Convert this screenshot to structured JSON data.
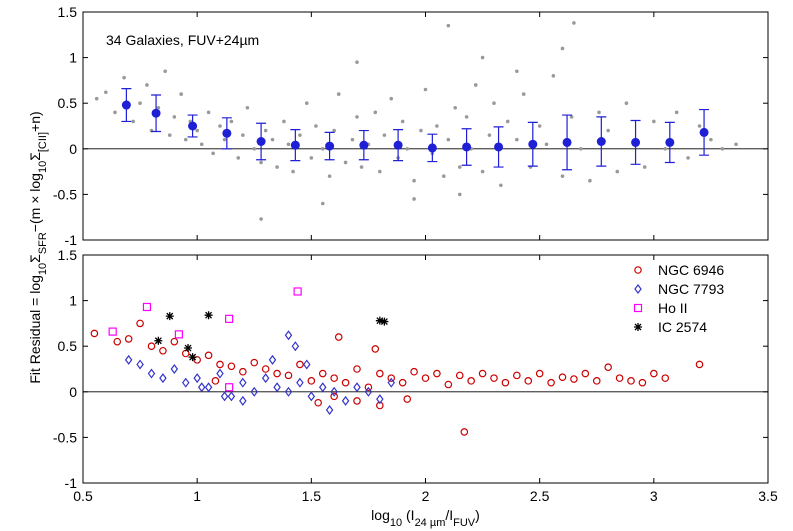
{
  "chart_data": [
    {
      "type": "scatter",
      "annotation": "34 Galaxies, FUV+24µm",
      "xlim": [
        0.5,
        3.5
      ],
      "xticks": [
        0.5,
        1,
        1.5,
        2,
        2.5,
        3,
        3.5
      ],
      "xticklabels": false,
      "ylim": [
        -1,
        1.5
      ],
      "yticks": [
        -1,
        -0.5,
        0,
        0.5,
        1,
        1.5
      ],
      "hline": 0,
      "series": [
        {
          "marker": "dot",
          "color": "#999999",
          "x": [
            0.56,
            0.6,
            0.64,
            0.68,
            0.72,
            0.75,
            0.78,
            0.8,
            0.83,
            0.86,
            0.88,
            0.9,
            0.93,
            0.95,
            0.97,
            1.0,
            1.02,
            1.05,
            1.07,
            1.1,
            1.12,
            1.15,
            1.18,
            1.2,
            1.22,
            1.25,
            1.28,
            1.3,
            1.33,
            1.35,
            1.38,
            1.4,
            1.42,
            1.45,
            1.48,
            1.5,
            1.52,
            1.55,
            1.58,
            1.6,
            1.62,
            1.65,
            1.68,
            1.7,
            1.72,
            1.75,
            1.78,
            1.8,
            1.82,
            1.85,
            1.88,
            1.9,
            1.92,
            1.95,
            1.98,
            2.0,
            2.03,
            2.05,
            2.08,
            2.1,
            2.13,
            2.15,
            2.18,
            2.2,
            2.22,
            2.25,
            2.28,
            2.3,
            2.33,
            2.36,
            2.4,
            2.43,
            2.46,
            2.5,
            2.53,
            2.56,
            2.6,
            2.64,
            2.68,
            2.72,
            2.76,
            2.8,
            2.84,
            2.88,
            2.92,
            2.96,
            3.0,
            3.05,
            3.1,
            3.15,
            3.2,
            3.25,
            3.3,
            3.36,
            1.28,
            1.55,
            1.7,
            2.1,
            2.25,
            2.6,
            2.65,
            2.15,
            1.95,
            2.4
          ],
          "y": [
            0.55,
            0.62,
            0.4,
            0.78,
            0.3,
            0.5,
            0.7,
            0.2,
            0.45,
            0.85,
            0.15,
            0.35,
            0.6,
            0.1,
            0.3,
            0.2,
            0.05,
            0.4,
            -0.05,
            0.25,
            0.1,
            0.3,
            -0.1,
            0.15,
            0.45,
            0.0,
            -0.15,
            0.2,
            0.1,
            -0.2,
            0.3,
            0.05,
            -0.25,
            0.15,
            0.5,
            -0.1,
            0.25,
            0.0,
            -0.3,
            0.2,
            0.6,
            -0.15,
            0.1,
            0.35,
            -0.2,
            0.05,
            0.4,
            -0.25,
            0.15,
            0.55,
            -0.1,
            0.3,
            0.0,
            -0.35,
            0.2,
            0.65,
            -0.05,
            0.25,
            -0.3,
            0.1,
            0.45,
            -0.2,
            0.35,
            0.0,
            0.7,
            -0.25,
            0.15,
            0.5,
            -0.4,
            0.3,
            0.1,
            0.6,
            -0.2,
            0.25,
            0.05,
            0.8,
            -0.3,
            0.35,
            0.0,
            -0.35,
            0.4,
            0.2,
            -0.25,
            0.5,
            0.1,
            -0.2,
            0.3,
            0.0,
            0.4,
            -0.1,
            0.25,
            0.1,
            0.0,
            0.05,
            -0.77,
            -0.6,
            0.95,
            1.35,
            1.0,
            1.1,
            1.38,
            -0.5,
            -0.55,
            0.85
          ]
        },
        {
          "marker": "errorbar",
          "color": "#1f1fd6",
          "x": [
            0.69,
            0.82,
            0.98,
            1.13,
            1.28,
            1.43,
            1.58,
            1.73,
            1.88,
            2.03,
            2.18,
            2.32,
            2.47,
            2.62,
            2.77,
            2.92,
            3.07,
            3.22
          ],
          "y": [
            0.48,
            0.39,
            0.25,
            0.17,
            0.08,
            0.04,
            0.03,
            0.04,
            0.04,
            0.01,
            0.02,
            0.02,
            0.05,
            0.07,
            0.08,
            0.07,
            0.07,
            0.18
          ],
          "errors": [
            0.18,
            0.2,
            0.12,
            0.17,
            0.2,
            0.17,
            0.15,
            0.16,
            0.17,
            0.15,
            0.2,
            0.22,
            0.24,
            0.3,
            0.27,
            0.24,
            0.22,
            0.25
          ]
        }
      ]
    },
    {
      "type": "scatter",
      "xlim": [
        0.5,
        3.5
      ],
      "xticks": [
        0.5,
        1,
        1.5,
        2,
        2.5,
        3,
        3.5
      ],
      "xticklabels": true,
      "ylim": [
        -1,
        1.5
      ],
      "yticks": [
        -1,
        -0.5,
        0,
        0.5,
        1,
        1.5
      ],
      "hline": 0,
      "legend": "upper right",
      "xlabel_parts": [
        "log",
        "10",
        " (I",
        "24 µm",
        "/I",
        "FUV",
        ")"
      ],
      "ylabel_parts": [
        "Fit Residual = log",
        "10",
        "Σ",
        "SFR",
        "−(m × log",
        "10",
        "Σ",
        "[CII]",
        "+n)"
      ],
      "series": [
        {
          "name": "NGC 6946",
          "marker": "circle",
          "color": "#cc0000",
          "x": [
            0.55,
            0.65,
            0.7,
            0.75,
            0.8,
            0.85,
            0.9,
            0.95,
            1.0,
            1.05,
            1.1,
            1.15,
            1.2,
            1.25,
            1.3,
            1.35,
            1.4,
            1.45,
            1.5,
            1.55,
            1.6,
            1.65,
            1.7,
            1.75,
            1.8,
            1.85,
            1.9,
            1.95,
            2.0,
            2.05,
            2.1,
            2.15,
            2.2,
            2.25,
            2.3,
            2.35,
            2.4,
            2.45,
            2.5,
            2.55,
            2.6,
            2.65,
            2.7,
            2.75,
            2.8,
            2.85,
            2.9,
            2.95,
            3.0,
            3.05,
            3.2,
            1.7,
            1.6,
            1.8,
            1.92,
            2.17,
            1.62,
            1.78,
            1.53,
            1.08
          ],
          "y": [
            0.64,
            0.55,
            0.58,
            0.75,
            0.5,
            0.45,
            0.55,
            0.42,
            0.35,
            0.4,
            0.3,
            0.28,
            0.22,
            0.32,
            0.25,
            0.2,
            0.18,
            0.3,
            0.12,
            0.2,
            0.15,
            0.1,
            0.25,
            0.05,
            0.2,
            0.15,
            0.1,
            0.22,
            0.15,
            0.2,
            0.08,
            0.18,
            0.12,
            0.2,
            0.15,
            0.1,
            0.18,
            0.12,
            0.2,
            0.1,
            0.16,
            0.14,
            0.2,
            0.12,
            0.27,
            0.15,
            0.12,
            0.1,
            0.2,
            0.15,
            0.3,
            -0.1,
            -0.05,
            -0.15,
            -0.08,
            -0.44,
            0.6,
            0.47,
            -0.12,
            0.12
          ]
        },
        {
          "name": "NGC 7793",
          "marker": "diamond",
          "color": "#3333cc",
          "x": [
            0.7,
            0.75,
            0.8,
            0.85,
            0.9,
            0.95,
            1.0,
            1.05,
            1.1,
            1.15,
            1.2,
            1.25,
            1.3,
            1.35,
            1.4,
            1.45,
            1.5,
            1.55,
            1.6,
            1.65,
            1.7,
            1.75,
            1.8,
            1.85,
            1.4,
            1.43,
            1.2,
            1.33,
            1.48,
            1.58,
            1.12,
            1.02
          ],
          "y": [
            0.35,
            0.3,
            0.2,
            0.15,
            0.25,
            0.1,
            0.15,
            0.05,
            0.2,
            -0.05,
            0.1,
            0.0,
            0.15,
            0.05,
            0.0,
            0.1,
            -0.05,
            0.05,
            0.0,
            -0.1,
            0.05,
            0.0,
            -0.08,
            0.1,
            0.62,
            0.5,
            -0.1,
            0.35,
            0.3,
            -0.2,
            -0.05,
            0.05
          ]
        },
        {
          "name": "Ho II",
          "marker": "square",
          "color": "#ff00ff",
          "x": [
            0.63,
            0.78,
            0.92,
            1.14,
            1.44,
            1.14
          ],
          "y": [
            0.66,
            0.93,
            0.63,
            0.8,
            1.1,
            0.05
          ]
        },
        {
          "name": "IC 2574",
          "marker": "star",
          "color": "#000000",
          "x": [
            0.83,
            0.88,
            0.96,
            1.05,
            0.98,
            1.8,
            1.82
          ],
          "y": [
            0.56,
            0.83,
            0.48,
            0.84,
            0.38,
            0.78,
            0.77
          ]
        }
      ]
    }
  ]
}
